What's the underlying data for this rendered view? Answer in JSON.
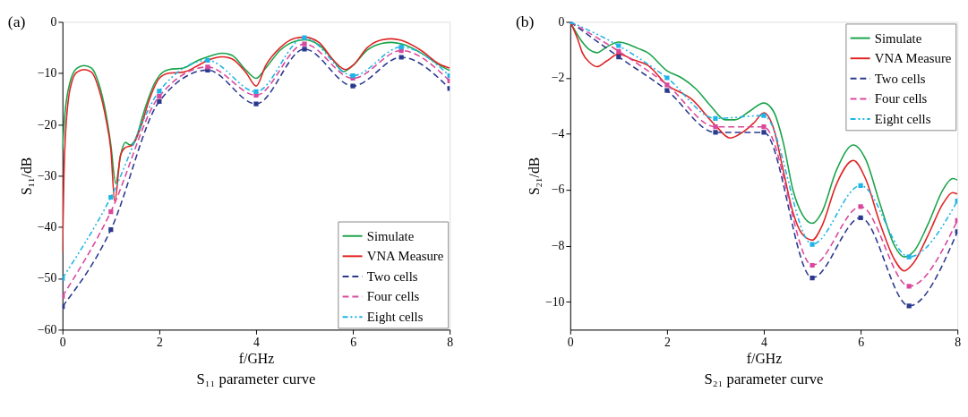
{
  "chart_data": [
    {
      "type": "line",
      "title": "S₁₁ parameter curve",
      "xlabel": "f/GHz",
      "ylabel": "S₁₁/dB",
      "annotations": [
        "(a)"
      ],
      "xlim": [
        0,
        8
      ],
      "xticks": [
        0,
        2,
        4,
        6,
        8
      ],
      "ylim": [
        -60,
        0
      ],
      "yticks": [
        -60,
        -50,
        -40,
        -30,
        -20,
        -10,
        0
      ],
      "grid": false,
      "legend": "bottom right",
      "series": [
        {
          "name": "Simulate",
          "color": "#1aa34a",
          "line_style": "solid",
          "marker": "none",
          "x": [
            0,
            0.05,
            0.15,
            0.3,
            0.45,
            0.6,
            0.75,
            0.9,
            1.0,
            1.1,
            1.2,
            1.3,
            1.4,
            1.5,
            1.7,
            1.9,
            2.0,
            2.2,
            2.5,
            2.8,
            3.0,
            3.3,
            3.5,
            3.8,
            4.0,
            4.2,
            4.5,
            4.8,
            5.0,
            5.3,
            5.6,
            5.8,
            6.0,
            6.3,
            6.6,
            6.8,
            7.0,
            7.4,
            7.8,
            8.0
          ],
          "values": [
            -25,
            -18,
            -12,
            -9,
            -8.5,
            -9,
            -12,
            -18,
            -24,
            -31.5,
            -26,
            -23.5,
            -24,
            -23,
            -17,
            -12,
            -10.5,
            -9.3,
            -9,
            -7.5,
            -6.8,
            -6.1,
            -6.5,
            -9.5,
            -11,
            -9,
            -5.5,
            -3.8,
            -3.5,
            -4.5,
            -7.5,
            -9.7,
            -8.5,
            -5.5,
            -4.2,
            -4,
            -4.3,
            -6,
            -8.5,
            -9.5
          ]
        },
        {
          "name": "VNA Measure",
          "color": "#e02424",
          "line_style": "solid",
          "marker": "none",
          "x": [
            0,
            0.03,
            0.1,
            0.2,
            0.3,
            0.45,
            0.6,
            0.75,
            0.9,
            1.0,
            1.08,
            1.2,
            1.3,
            1.45,
            1.6,
            1.8,
            2.0,
            2.2,
            2.5,
            2.8,
            3.0,
            3.3,
            3.5,
            3.8,
            4.0,
            4.2,
            4.5,
            4.8,
            5.0,
            5.3,
            5.6,
            5.85,
            6.0,
            6.3,
            6.6,
            6.8,
            7.0,
            7.4,
            7.8,
            8.0
          ],
          "values": [
            -45,
            -30,
            -17,
            -11.5,
            -9.8,
            -9.3,
            -9.8,
            -13,
            -19,
            -25,
            -35,
            -26,
            -24.5,
            -24,
            -21,
            -15,
            -11,
            -10,
            -9.8,
            -8.5,
            -7.5,
            -6.8,
            -7.2,
            -10,
            -12.5,
            -8.5,
            -5,
            -3.2,
            -3,
            -4,
            -7.5,
            -9.3,
            -8.5,
            -5,
            -3.5,
            -3.3,
            -3.6,
            -5.5,
            -8.3,
            -9
          ]
        },
        {
          "name": "Two cells",
          "color": "#2b3a8f",
          "line_style": "dashed",
          "marker": "square",
          "x": [
            0,
            1,
            2,
            3,
            4,
            5,
            6,
            7,
            8
          ],
          "values": [
            -55.5,
            -40.5,
            -15.5,
            -9.4,
            -16,
            -5.3,
            -12.5,
            -6.9,
            -13
          ]
        },
        {
          "name": "Four cells",
          "color": "#d9489c",
          "line_style": "dashed",
          "marker": "square",
          "x": [
            0,
            1,
            2,
            3,
            4,
            5,
            6,
            7,
            8
          ],
          "values": [
            -53.5,
            -37,
            -14.5,
            -8.8,
            -14.3,
            -4.3,
            -11,
            -5.6,
            -11.5
          ]
        },
        {
          "name": "Eight cells",
          "color": "#1eb4e6",
          "line_style": "dotted",
          "marker": "square",
          "x": [
            0,
            1,
            2,
            3,
            4,
            5,
            6,
            7,
            8
          ],
          "values": [
            -50,
            -34.2,
            -13.5,
            -7.5,
            -13.6,
            -3.1,
            -10.5,
            -4.9,
            -10.5
          ]
        }
      ]
    },
    {
      "type": "line",
      "title": "S₂₁ parameter curve",
      "xlabel": "f/GHz",
      "ylabel": "S₂₁/dB",
      "annotations": [
        "(b)"
      ],
      "xlim": [
        0,
        8
      ],
      "xticks": [
        0,
        2,
        4,
        6,
        8
      ],
      "ylim": [
        -11,
        0
      ],
      "yticks": [
        -10,
        -8,
        -6,
        -4,
        -2,
        0
      ],
      "grid": false,
      "legend": "top right",
      "series": [
        {
          "name": "Simulate",
          "color": "#1aa34a",
          "line_style": "solid",
          "marker": "none",
          "x": [
            0,
            0.2,
            0.4,
            0.55,
            0.75,
            1.0,
            1.2,
            1.4,
            1.6,
            2.0,
            2.3,
            2.6,
            2.9,
            3.2,
            3.4,
            3.7,
            4.0,
            4.2,
            4.4,
            4.6,
            4.8,
            5.0,
            5.2,
            5.5,
            5.85,
            6.1,
            6.4,
            6.7,
            6.9,
            7.1,
            7.4,
            7.7,
            7.9,
            8.0
          ],
          "values": [
            0,
            -0.6,
            -1.0,
            -1.1,
            -0.9,
            -0.72,
            -0.8,
            -0.95,
            -1.1,
            -1.75,
            -2.0,
            -2.4,
            -3.0,
            -3.5,
            -3.5,
            -3.2,
            -2.9,
            -3.2,
            -4.3,
            -6,
            -6.9,
            -7.2,
            -6.8,
            -5.3,
            -4.4,
            -4.9,
            -6.5,
            -8,
            -8.4,
            -8.2,
            -7.2,
            -6,
            -5.6,
            -5.65
          ]
        },
        {
          "name": "VNA Measure",
          "color": "#e02424",
          "line_style": "solid",
          "marker": "none",
          "x": [
            0,
            0.15,
            0.25,
            0.4,
            0.55,
            0.75,
            1.0,
            1.3,
            1.6,
            2.0,
            2.5,
            3.0,
            3.3,
            3.6,
            3.8,
            4.0,
            4.2,
            4.4,
            4.6,
            4.8,
            5.0,
            5.2,
            5.5,
            5.85,
            6.1,
            6.4,
            6.7,
            6.9,
            7.1,
            7.4,
            7.7,
            7.9,
            8.0
          ],
          "values": [
            0,
            -0.6,
            -1.1,
            -1.45,
            -1.6,
            -1.4,
            -1.15,
            -1.35,
            -1.55,
            -2.25,
            -2.75,
            -3.7,
            -4.15,
            -3.9,
            -3.6,
            -3.25,
            -3.8,
            -5.3,
            -6.8,
            -7.6,
            -7.8,
            -7.3,
            -5.8,
            -4.95,
            -5.6,
            -7.2,
            -8.5,
            -8.9,
            -8.6,
            -7.6,
            -6.5,
            -6.1,
            -6.15
          ]
        },
        {
          "name": "Two cells",
          "color": "#2b3a8f",
          "line_style": "dashed",
          "marker": "square",
          "x": [
            0,
            1,
            2,
            3,
            4,
            5,
            6,
            7,
            8
          ],
          "values": [
            0,
            -1.25,
            -2.45,
            -3.95,
            -3.95,
            -9.15,
            -7.0,
            -10.15,
            -7.5
          ]
        },
        {
          "name": "Four cells",
          "color": "#d9489c",
          "line_style": "dashed",
          "marker": "square",
          "x": [
            0,
            1,
            2,
            3,
            4,
            5,
            6,
            7,
            8
          ],
          "values": [
            0,
            -1.05,
            -2.25,
            -3.75,
            -3.75,
            -8.7,
            -6.6,
            -9.45,
            -7.1
          ]
        },
        {
          "name": "Eight cells",
          "color": "#1eb4e6",
          "line_style": "dotted",
          "marker": "square",
          "x": [
            0,
            1,
            2,
            3,
            4,
            5,
            6,
            7,
            8
          ],
          "values": [
            0,
            -0.85,
            -2.0,
            -3.45,
            -3.35,
            -7.95,
            -5.85,
            -8.4,
            -6.4
          ]
        }
      ]
    }
  ]
}
